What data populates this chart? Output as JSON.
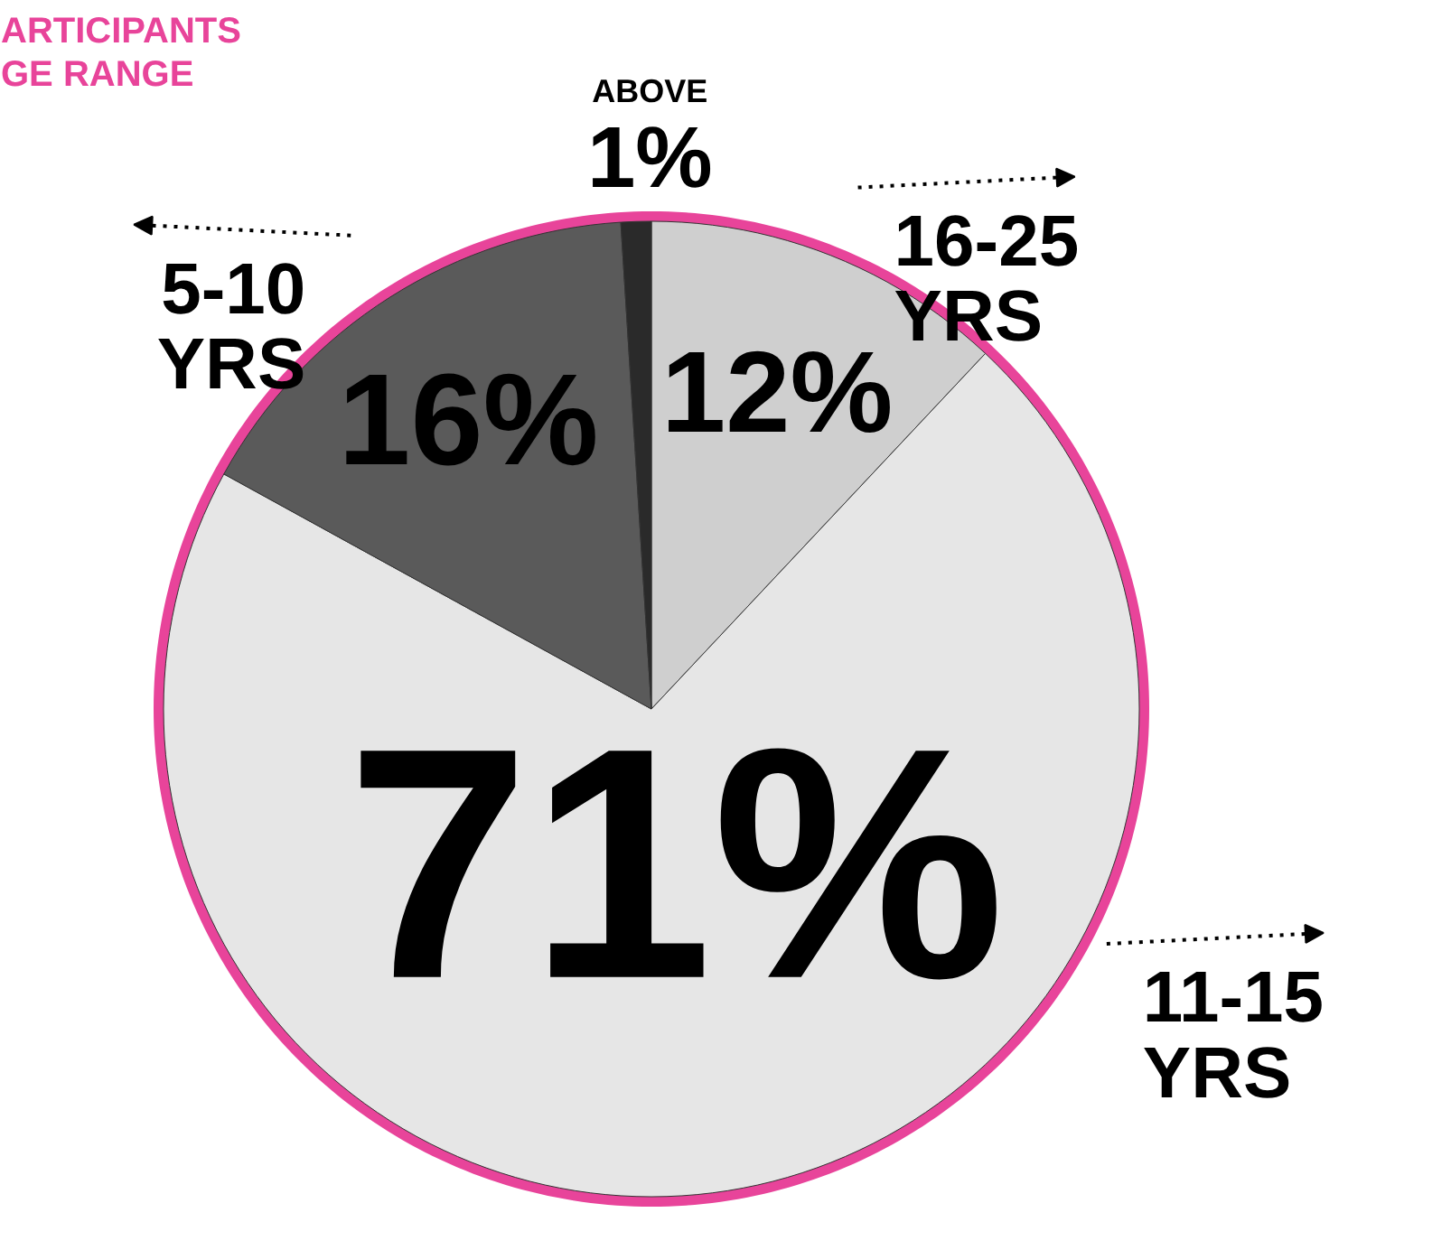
{
  "chart_data": {
    "type": "pie",
    "title": "ARTICIPANTS\nGE RANGE",
    "categories": [
      "16-25\nYRS",
      "11-15\nYRS",
      "5-10\nYRS",
      "ABOVE"
    ],
    "values": [
      12,
      71,
      16,
      1
    ],
    "value_labels": [
      "12%",
      "71%",
      "16%",
      "1%"
    ],
    "colors": [
      "#cfcfcf",
      "#e6e6e6",
      "#5a5a5a",
      "#2a2a2a"
    ]
  }
}
